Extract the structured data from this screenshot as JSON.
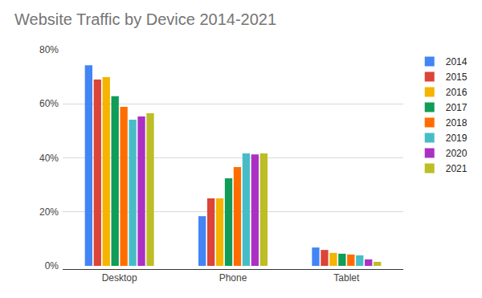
{
  "chart_data": {
    "type": "bar",
    "title": "Website Traffic by Device 2014-2021",
    "categories": [
      "Desktop",
      "Phone",
      "Tablet"
    ],
    "series": [
      {
        "name": "2014",
        "color": "#4285f4",
        "values": [
          74.3,
          18.4,
          6.8
        ]
      },
      {
        "name": "2015",
        "color": "#db4437",
        "values": [
          69.0,
          25.0,
          5.9
        ]
      },
      {
        "name": "2016",
        "color": "#f4b400",
        "values": [
          69.9,
          25.0,
          4.8
        ]
      },
      {
        "name": "2017",
        "color": "#0f9d58",
        "values": [
          62.8,
          32.4,
          4.5
        ]
      },
      {
        "name": "2018",
        "color": "#ff6d00",
        "values": [
          58.9,
          36.6,
          4.2
        ]
      },
      {
        "name": "2019",
        "color": "#46bdc6",
        "values": [
          54.1,
          41.6,
          3.9
        ]
      },
      {
        "name": "2020",
        "color": "#ab30c4",
        "values": [
          55.3,
          41.3,
          2.4
        ]
      },
      {
        "name": "2021",
        "color": "#bdbd26",
        "values": [
          56.5,
          41.6,
          1.5
        ]
      }
    ],
    "ylim": [
      0,
      80
    ],
    "yticks": [
      {
        "value": 0,
        "label": "0%"
      },
      {
        "value": 20,
        "label": "20%"
      },
      {
        "value": 40,
        "label": "40%"
      },
      {
        "value": 60,
        "label": "60%"
      },
      {
        "value": 80,
        "label": "80%"
      }
    ],
    "grid": true,
    "legend": "right"
  }
}
